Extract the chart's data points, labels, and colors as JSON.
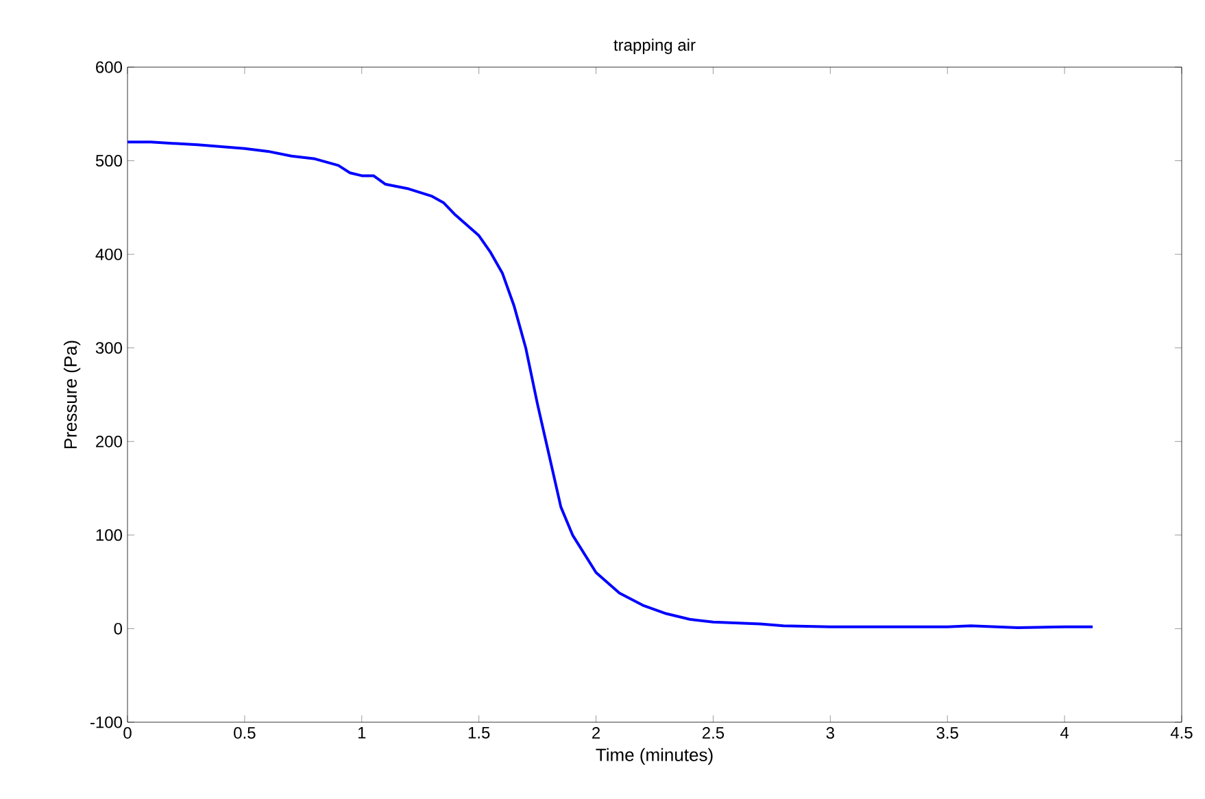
{
  "chart_data": {
    "type": "line",
    "title": "trapping air",
    "xlabel": "Time (minutes)",
    "ylabel": "Pressure (Pa)",
    "xlim": [
      0,
      4.5
    ],
    "xticks": [
      0,
      0.5,
      1,
      1.5,
      2,
      2.5,
      3,
      3.5,
      4,
      4.5
    ],
    "ylim": [
      -100,
      600
    ],
    "yticks": [
      -100,
      0,
      100,
      200,
      300,
      400,
      500,
      600
    ],
    "grid": false,
    "marker": "none",
    "line_style": "solid",
    "series": [
      {
        "color": "#0000ff",
        "x": [
          0,
          0.1,
          0.3,
          0.5,
          0.6,
          0.7,
          0.8,
          0.9,
          0.95,
          1.0,
          1.05,
          1.1,
          1.2,
          1.3,
          1.35,
          1.4,
          1.5,
          1.55,
          1.6,
          1.65,
          1.7,
          1.75,
          1.8,
          1.85,
          1.9,
          2.0,
          2.1,
          2.2,
          2.3,
          2.4,
          2.5,
          2.7,
          2.8,
          3.0,
          3.5,
          3.6,
          3.8,
          4.0,
          4.12
        ],
        "values": [
          520,
          520,
          517,
          513,
          510,
          505,
          502,
          495,
          487,
          484,
          484,
          475,
          470,
          462,
          455,
          442,
          420,
          402,
          380,
          345,
          300,
          240,
          185,
          130,
          100,
          60,
          38,
          25,
          16,
          10,
          7,
          5,
          3,
          2,
          2,
          3,
          1,
          2,
          2
        ]
      }
    ]
  }
}
